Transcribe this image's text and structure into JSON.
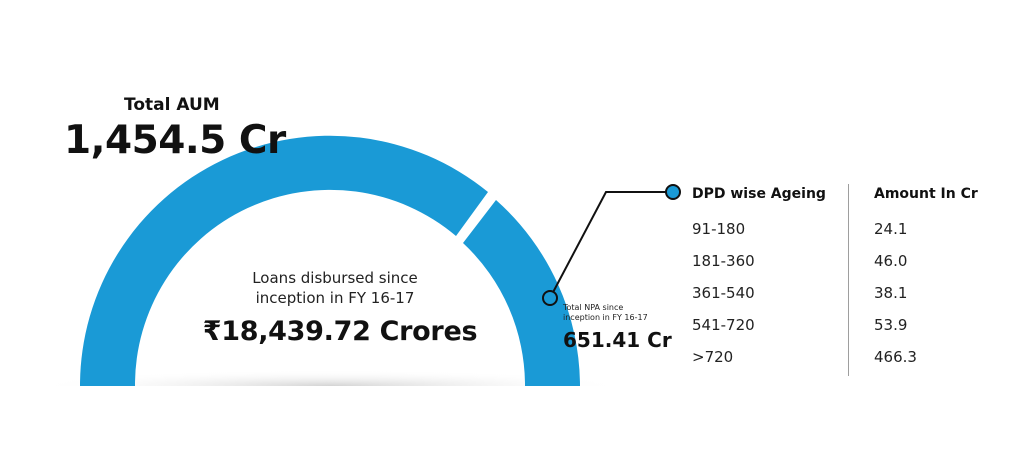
{
  "aum": {
    "label": "Total AUM",
    "value": "1,454.5 Cr"
  },
  "disbursed": {
    "label_line1": "Loans disbursed since",
    "label_line2": "inception in FY 16-17",
    "value": "₹18,439.72 Crores"
  },
  "npa": {
    "label_line1": "Total NPA since",
    "label_line2": "inception in FY 16-17",
    "value": "651.41 Cr"
  },
  "colors": {
    "accent": "#1a9ad6",
    "text": "#111111",
    "divider": "#9e9e9e"
  },
  "table": {
    "headers": [
      "DPD wise Ageing",
      "Amount In Cr"
    ],
    "rows": [
      [
        "91-180",
        "24.1"
      ],
      [
        "181-360",
        "46.0"
      ],
      [
        "361-540",
        "38.1"
      ],
      [
        "541-720",
        "53.9"
      ],
      [
        ">720",
        "466.3"
      ]
    ]
  },
  "chart_data": {
    "type": "table",
    "columns": [
      "DPD wise Ageing",
      "Amount In Cr"
    ],
    "categories": [
      "91-180",
      "181-360",
      "361-540",
      "541-720",
      ">720"
    ],
    "values": [
      24.1,
      46.0,
      38.1,
      53.9,
      466.3
    ]
  }
}
